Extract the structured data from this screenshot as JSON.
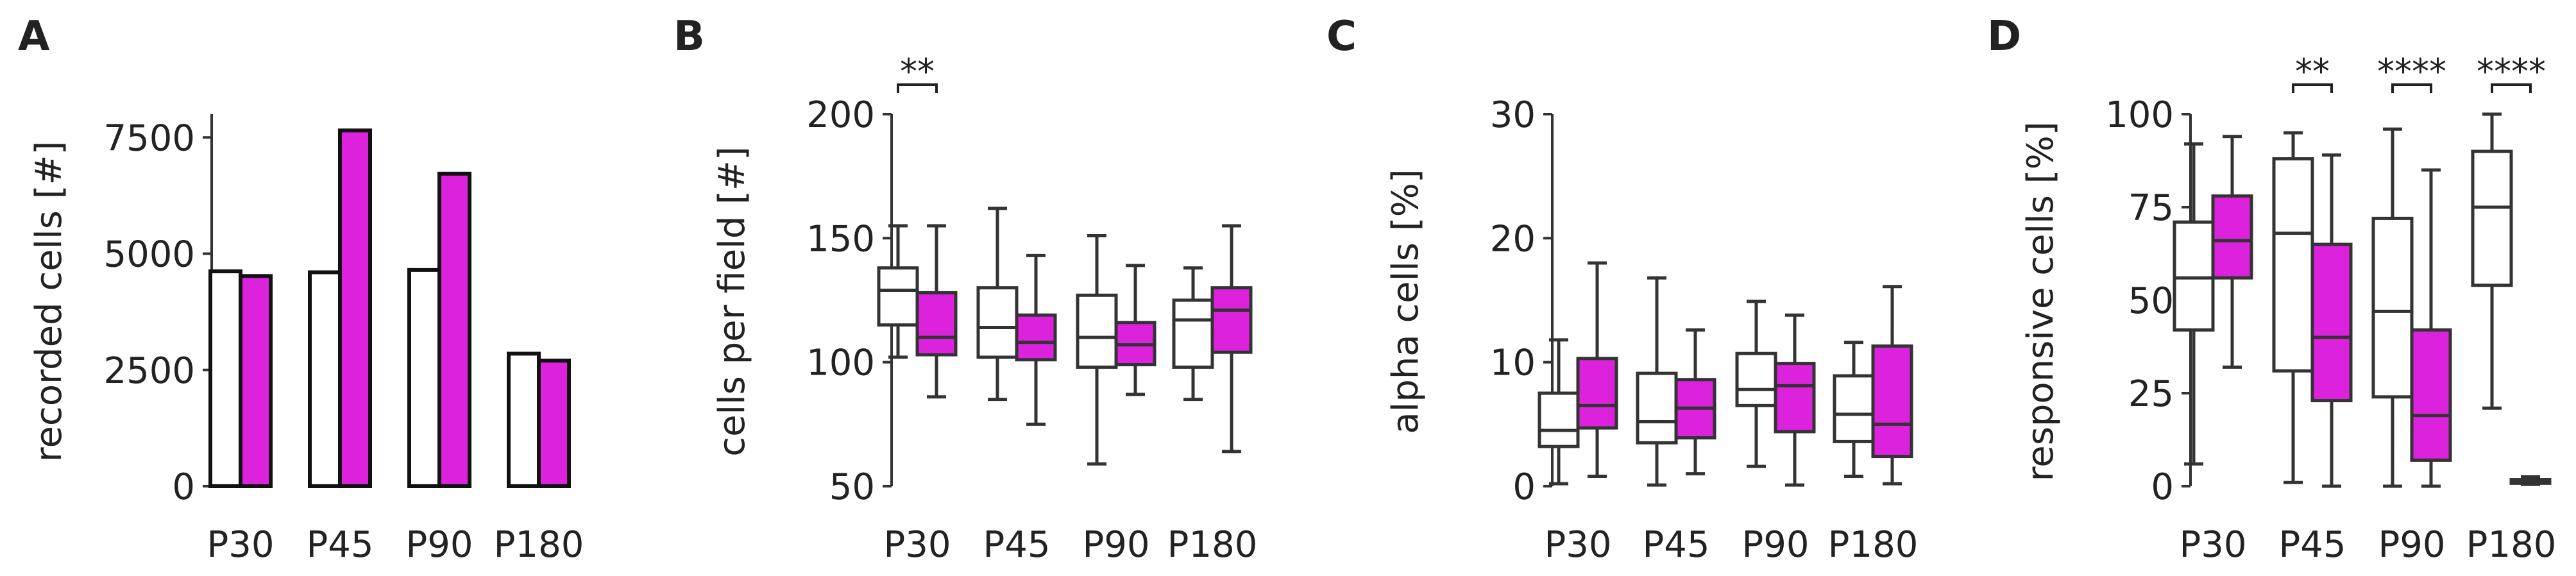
{
  "colors": {
    "control": "#ffffff",
    "treatment": "#dd22dd",
    "stroke": "#333333"
  },
  "chart_data": [
    {
      "panel": "A",
      "type": "bar",
      "ylabel": "recorded cells [#]",
      "categories": [
        "P30",
        "P45",
        "P90",
        "P180"
      ],
      "ylim": [
        0,
        8000
      ],
      "yticks": [
        0,
        2500,
        5000,
        7500
      ],
      "series": [
        {
          "values": [
            4620,
            4600,
            4650,
            2850
          ]
        },
        {
          "values": [
            4520,
            7650,
            6720,
            2700
          ]
        }
      ]
    },
    {
      "panel": "B",
      "type": "box",
      "ylabel": "cells per field [#]",
      "categories": [
        "P30",
        "P45",
        "P90",
        "P180"
      ],
      "ylim": [
        50,
        200
      ],
      "yticks": [
        50,
        100,
        150,
        200
      ],
      "boxes": [
        [
          {
            "whislo": 102,
            "q1": 115,
            "med": 129,
            "q3": 138,
            "whishi": 155
          },
          {
            "whislo": 86,
            "q1": 103,
            "med": 110,
            "q3": 128,
            "whishi": 155
          }
        ],
        [
          {
            "whislo": 85,
            "q1": 102,
            "med": 114,
            "q3": 130,
            "whishi": 162
          },
          {
            "whislo": 75,
            "q1": 101,
            "med": 108,
            "q3": 119,
            "whishi": 143
          }
        ],
        [
          {
            "whislo": 59,
            "q1": 98,
            "med": 110,
            "q3": 127,
            "whishi": 151
          },
          {
            "whislo": 87,
            "q1": 99,
            "med": 107,
            "q3": 116,
            "whishi": 139
          }
        ],
        [
          {
            "whislo": 85,
            "q1": 98,
            "med": 117,
            "q3": 125,
            "whishi": 138
          },
          {
            "whislo": 64,
            "q1": 104,
            "med": 121,
            "q3": 130,
            "whishi": 155
          }
        ]
      ],
      "significance": [
        {
          "category": "P30",
          "label": "**"
        }
      ]
    },
    {
      "panel": "C",
      "type": "box",
      "ylabel": "alpha cells [%]",
      "categories": [
        "P30",
        "P45",
        "P90",
        "P180"
      ],
      "ylim": [
        0,
        30
      ],
      "yticks": [
        0,
        10,
        20,
        30
      ],
      "boxes": [
        [
          {
            "whislo": 0.2,
            "q1": 3.2,
            "med": 4.5,
            "q3": 7.5,
            "whishi": 11.8
          },
          {
            "whislo": 0.8,
            "q1": 4.7,
            "med": 6.5,
            "q3": 10.3,
            "whishi": 18.0
          }
        ],
        [
          {
            "whislo": 0.1,
            "q1": 3.5,
            "med": 5.2,
            "q3": 9.1,
            "whishi": 16.8
          },
          {
            "whislo": 1.0,
            "q1": 3.9,
            "med": 6.3,
            "q3": 8.6,
            "whishi": 12.6
          }
        ],
        [
          {
            "whislo": 1.6,
            "q1": 6.5,
            "med": 7.8,
            "q3": 10.7,
            "whishi": 14.9
          },
          {
            "whislo": 0.1,
            "q1": 4.4,
            "med": 8.1,
            "q3": 9.9,
            "whishi": 13.8
          }
        ],
        [
          {
            "whislo": 0.8,
            "q1": 3.6,
            "med": 5.8,
            "q3": 8.9,
            "whishi": 11.6
          },
          {
            "whislo": 0.2,
            "q1": 2.4,
            "med": 5.0,
            "q3": 11.3,
            "whishi": 16.1
          }
        ]
      ]
    },
    {
      "panel": "D",
      "type": "box",
      "ylabel": "responsive cells [%]",
      "categories": [
        "P30",
        "P45",
        "P90",
        "P180"
      ],
      "ylim": [
        0,
        100
      ],
      "yticks": [
        0,
        25,
        50,
        75,
        100
      ],
      "boxes": [
        [
          {
            "whislo": 6,
            "q1": 42,
            "med": 56,
            "q3": 71,
            "whishi": 92
          },
          {
            "whislo": 32,
            "q1": 56,
            "med": 66,
            "q3": 78,
            "whishi": 94
          }
        ],
        [
          {
            "whislo": 1,
            "q1": 31,
            "med": 68,
            "q3": 88,
            "whishi": 95
          },
          {
            "whislo": 0,
            "q1": 23,
            "med": 40,
            "q3": 65,
            "whishi": 89
          }
        ],
        [
          {
            "whislo": 0,
            "q1": 24,
            "med": 47,
            "q3": 72,
            "whishi": 96
          },
          {
            "whislo": 0,
            "q1": 7,
            "med": 19,
            "q3": 42,
            "whishi": 85
          }
        ],
        [
          {
            "whislo": 21,
            "q1": 54,
            "med": 75,
            "q3": 90,
            "whishi": 100
          },
          {
            "whislo": 0.5,
            "q1": 0.8,
            "med": 1.2,
            "q3": 1.8,
            "whishi": 2.5
          }
        ]
      ],
      "significance": [
        {
          "category": "P45",
          "label": "**"
        },
        {
          "category": "P90",
          "label": "****"
        },
        {
          "category": "P180",
          "label": "****"
        }
      ]
    }
  ]
}
